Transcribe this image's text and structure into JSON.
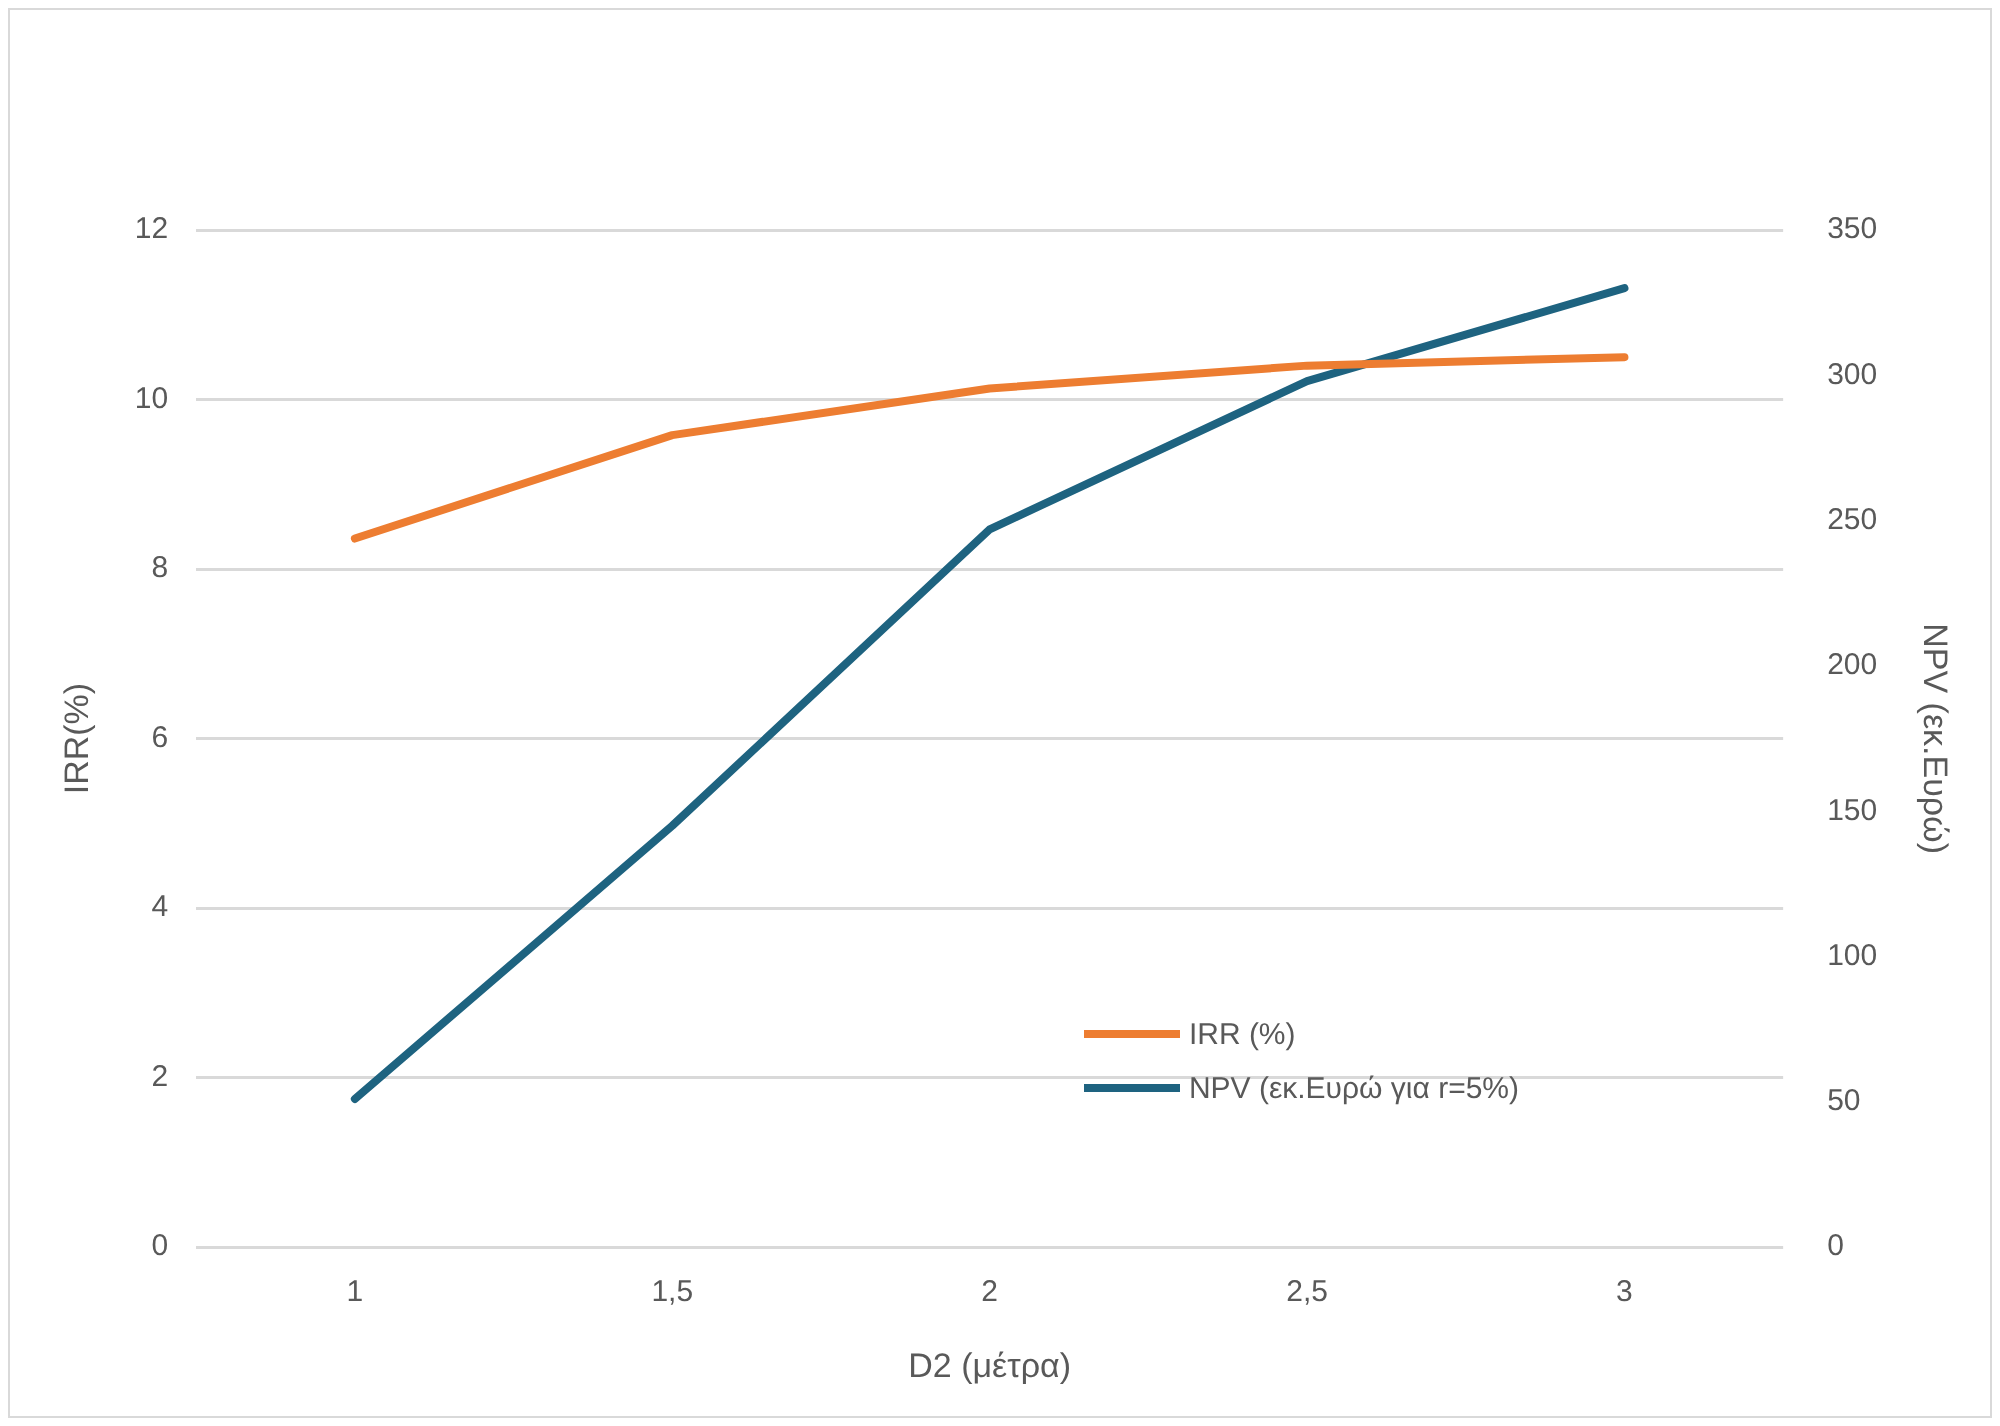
{
  "chart_data": {
    "type": "line",
    "xlabel": "D2 (μέτρα)",
    "ylabel": "IRR(%)",
    "y2label": "NPV (εκ.Ευρώ)",
    "categories": [
      "1",
      "1,5",
      "2",
      "2,5",
      "3"
    ],
    "series": [
      {
        "name": "IRR (%)",
        "color": "#ed7d31",
        "values": [
          8.36,
          9.58,
          10.13,
          10.4,
          10.5
        ]
      },
      {
        "name": "NPV (εκ.Ευρώ για r=5%)",
        "color": "#1e6380",
        "axis": "y2",
        "values": [
          51,
          145,
          247,
          298,
          330
        ]
      }
    ],
    "ylim": [
      0,
      12
    ],
    "yticks": [
      0,
      2,
      4,
      6,
      8,
      10,
      12
    ],
    "y2lim": [
      0,
      350
    ],
    "y2ticks": [
      0,
      50,
      100,
      150,
      200,
      250,
      300,
      350
    ],
    "grid": "y",
    "legend": "bottom right",
    "marker": "none",
    "line_style": "solid"
  }
}
